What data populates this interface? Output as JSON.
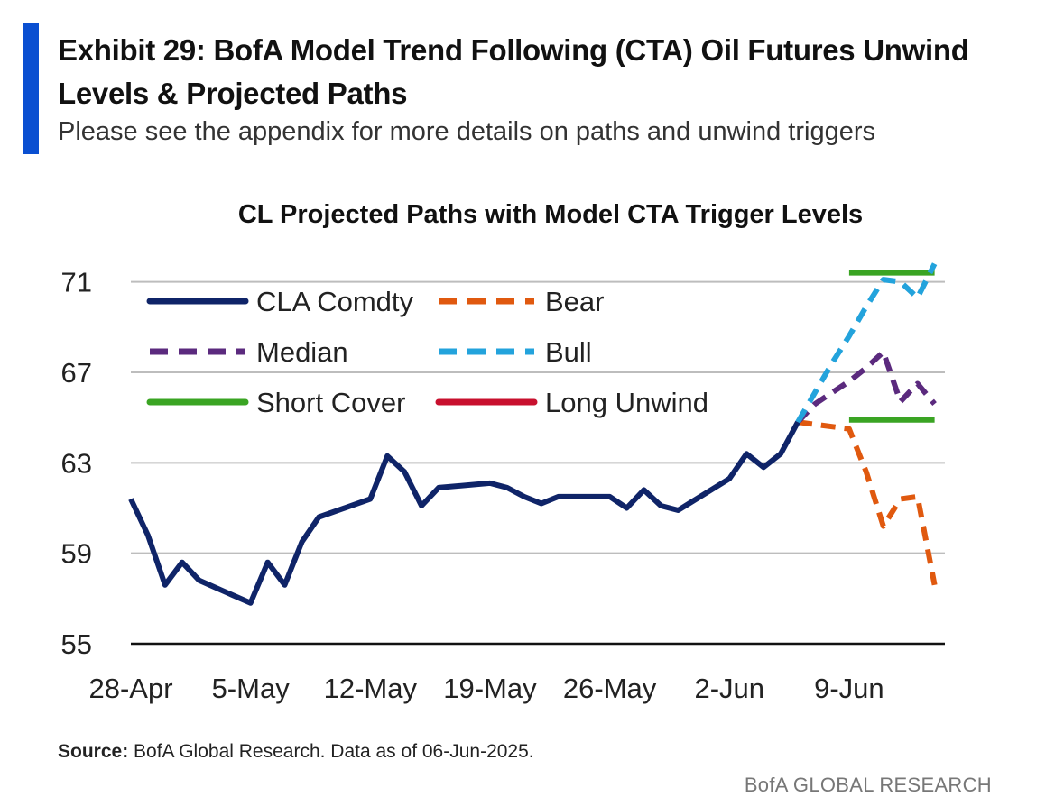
{
  "header": {
    "title": "Exhibit 29: BofA Model Trend Following (CTA) Oil Futures Unwind Levels & Projected Paths",
    "subtitle": "Please see the appendix for more details on paths and unwind triggers"
  },
  "colors": {
    "accent": "#0a4fd1",
    "grid": "#bdbdbd",
    "axis": "#111111"
  },
  "chart_data": {
    "type": "line",
    "title": "CL Projected Paths with Model CTA Trigger Levels",
    "xlabel": "",
    "ylabel": "",
    "ylim": [
      55,
      72.5
    ],
    "xlim": [
      0,
      47.6
    ],
    "yticks": [
      "71",
      "67",
      "63",
      "59",
      "55"
    ],
    "ytick_values": [
      71,
      67,
      63,
      59,
      55
    ],
    "xtick_labels": [
      "28-Apr",
      "5-May",
      "12-May",
      "19-May",
      "26-May",
      "2-Jun",
      "9-Jun"
    ],
    "xtick_positions": [
      0,
      7,
      14,
      21,
      28,
      35,
      42
    ],
    "legend_position": "top-left",
    "series": [
      {
        "name": "CLA Comdty",
        "style": "solid",
        "color": "#0f2468",
        "x": [
          0,
          1,
          2,
          3,
          4,
          7,
          8,
          9,
          10,
          11,
          14,
          15,
          16,
          17,
          18,
          21,
          22,
          23,
          24,
          25,
          28,
          29,
          30,
          31,
          32,
          35,
          36,
          37,
          38,
          39
        ],
        "y": [
          61.4,
          59.8,
          57.6,
          58.6,
          57.8,
          56.8,
          58.6,
          57.6,
          59.5,
          60.6,
          61.4,
          63.3,
          62.6,
          61.1,
          61.9,
          62.1,
          61.9,
          61.5,
          61.2,
          61.5,
          61.5,
          61.0,
          61.8,
          61.1,
          60.9,
          62.3,
          63.4,
          62.8,
          63.4,
          64.8
        ]
      },
      {
        "name": "Bear",
        "style": "dashed",
        "color": "#e0590f",
        "x": [
          39,
          40,
          41,
          42,
          43,
          44,
          45,
          46,
          47
        ],
        "y": [
          64.8,
          64.7,
          64.6,
          64.5,
          62.6,
          60.2,
          61.4,
          61.5,
          57.6
        ]
      },
      {
        "name": "Median",
        "style": "dashed",
        "color": "#5b2a7e",
        "x": [
          39,
          40,
          41,
          42,
          43,
          44,
          45,
          46,
          47
        ],
        "y": [
          64.8,
          65.6,
          66.1,
          66.6,
          67.2,
          67.9,
          65.7,
          66.5,
          65.6
        ]
      },
      {
        "name": "Bull",
        "style": "dashed",
        "color": "#23a3dc",
        "x": [
          39,
          40,
          41,
          42,
          43,
          44,
          45,
          46,
          47
        ],
        "y": [
          64.8,
          66.1,
          67.4,
          68.6,
          69.9,
          71.1,
          71.0,
          70.3,
          71.8
        ]
      },
      {
        "name": "Short Cover",
        "style": "solid",
        "color": "#3aa423",
        "segments": [
          {
            "x": [
              42,
              47
            ],
            "y": [
              71.4,
              71.4
            ]
          },
          {
            "x": [
              42,
              47
            ],
            "y": [
              64.9,
              64.9
            ]
          }
        ]
      },
      {
        "name": "Long Unwind",
        "style": "solid",
        "color": "#c8102e",
        "segments": []
      }
    ]
  },
  "source": {
    "label": "Source:",
    "text": " BofA Global Research.  Data as of 06-Jun-2025."
  },
  "footer": {
    "brand": "BofA GLOBAL RESEARCH"
  }
}
